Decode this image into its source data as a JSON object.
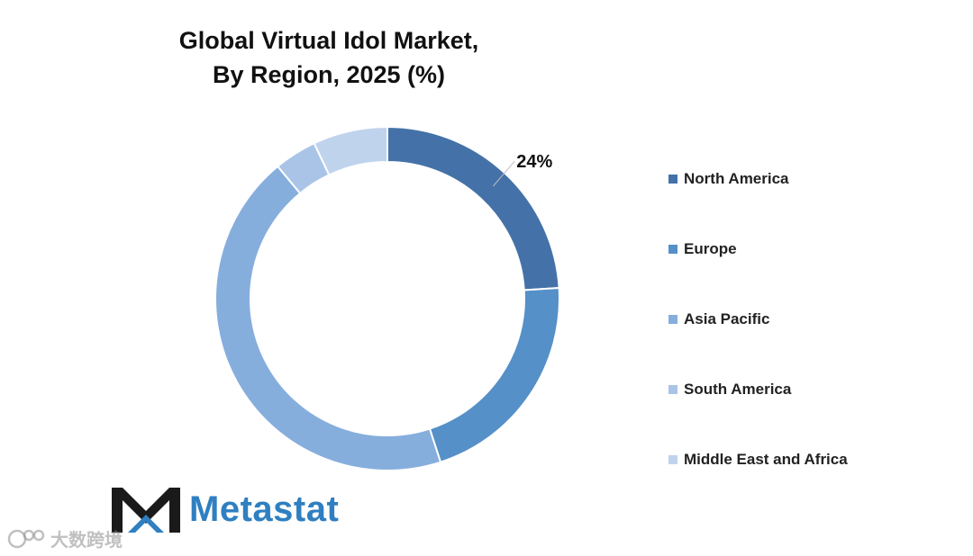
{
  "chart_data": {
    "type": "pie",
    "style": "donut",
    "title_lines": [
      "Global Virtual Idol Market,",
      "By Region, 2025 (%)"
    ],
    "legend_position": "right",
    "series": [
      {
        "name": "North America",
        "value": 24,
        "color": "#4472a8"
      },
      {
        "name": "Europe",
        "value": 21,
        "color": "#5590c8"
      },
      {
        "name": "Asia Pacific",
        "value": 44,
        "color": "#86aedd"
      },
      {
        "name": "South America",
        "value": 4,
        "color": "#a9c4e6"
      },
      {
        "name": "Middle East and Africa",
        "value": 7,
        "color": "#c0d3ed"
      }
    ],
    "data_labels": [
      {
        "series": "North America",
        "text": "24%"
      }
    ]
  },
  "brand": {
    "name": "Metastat",
    "logo_icon": "metastat-m-logo-icon",
    "color": "#2f7fc1"
  },
  "watermark": {
    "text": "大数跨境",
    "icon": "watermark-logo-icon"
  }
}
